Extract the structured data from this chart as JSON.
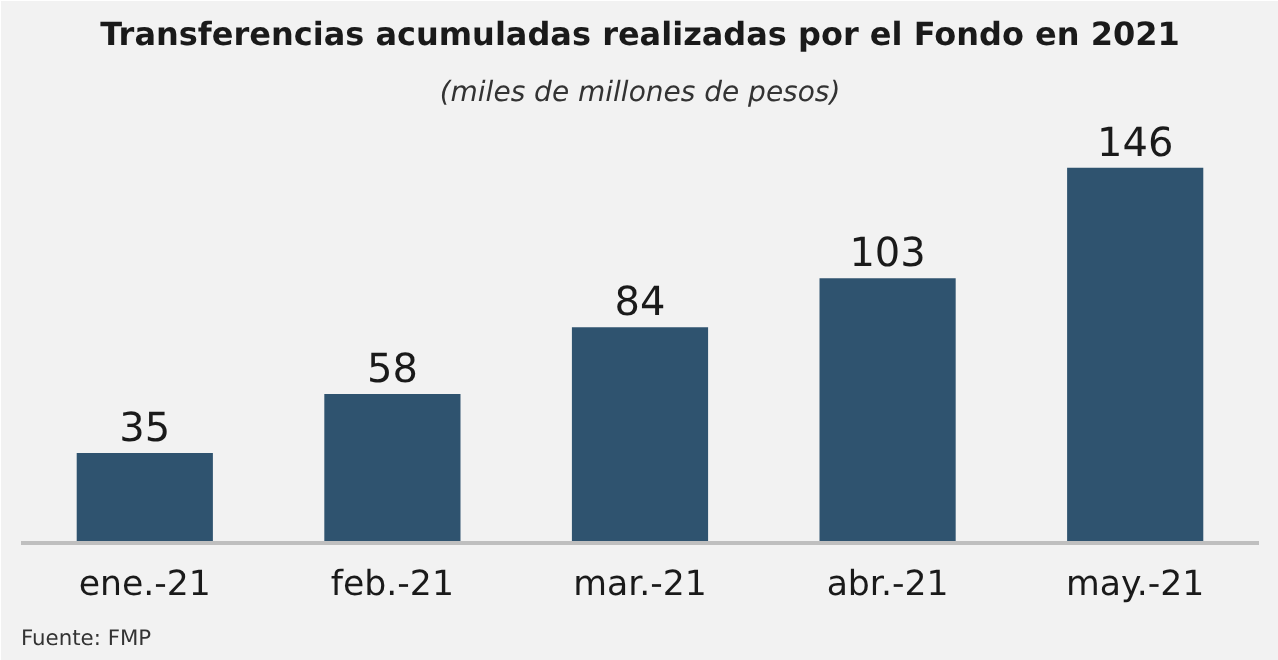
{
  "chart_data": {
    "type": "bar",
    "title": "Transferencias acumuladas realizadas por el Fondo en 2021",
    "subtitle": "(miles de millones de pesos)",
    "categories": [
      "ene.-21",
      "feb.-21",
      "mar.-21",
      "abr.-21",
      "may.-21"
    ],
    "values": [
      35,
      58,
      84,
      103,
      146
    ],
    "color": "#2f536f",
    "ylim": [
      0,
      165
    ],
    "data_labels": true,
    "grid": false,
    "annotations": [
      "Fuente: FMP"
    ]
  }
}
